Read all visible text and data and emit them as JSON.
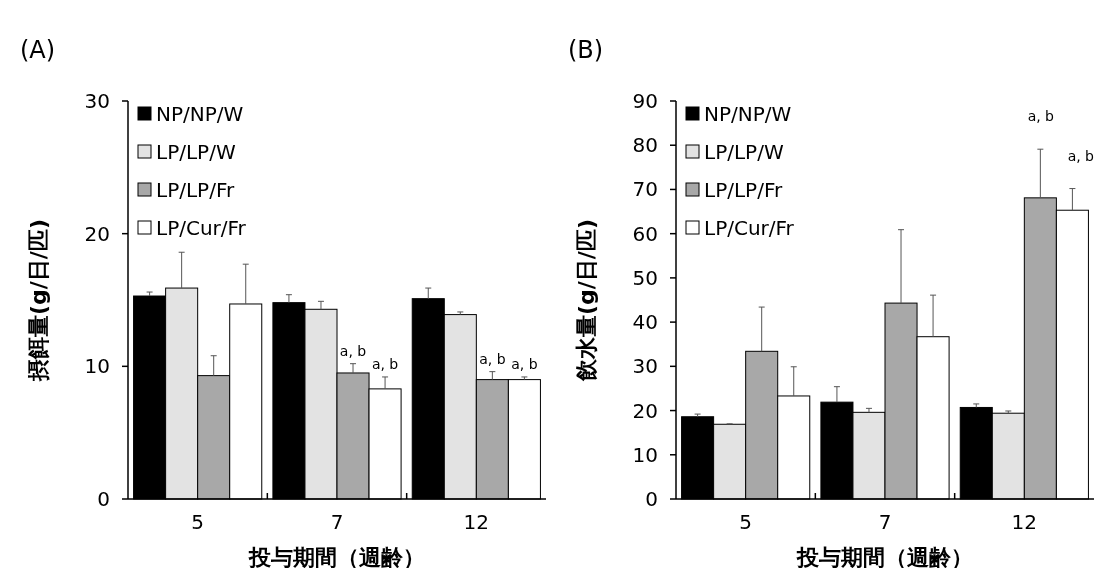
{
  "chart_data": [
    {
      "type": "bar",
      "title": "(A)",
      "xlabel": "投与期間（週齢）",
      "ylabel": "摂餌量(g/日/匹)",
      "categories": [
        "5",
        "7",
        "12"
      ],
      "ylim": [
        0,
        30
      ],
      "yticks": [
        0,
        10,
        20,
        30
      ],
      "grid": false,
      "legend": "top left",
      "series": [
        {
          "name": "NP/NP/W",
          "color": "#000000",
          "values": [
            15.3,
            14.8,
            15.1
          ],
          "errors": [
            [
              15.3,
              15.6
            ],
            [
              14.8,
              15.4
            ],
            [
              15.1,
              15.9
            ]
          ]
        },
        {
          "name": "LP/LP/W",
          "color": "#e3e3e3",
          "values": [
            15.9,
            14.3,
            13.9
          ],
          "errors": [
            [
              15.9,
              18.6
            ],
            [
              14.3,
              14.9
            ],
            [
              13.9,
              14.1
            ]
          ]
        },
        {
          "name": "LP/LP/Fr",
          "color": "#a8a8a8",
          "values": [
            9.3,
            9.5,
            9.0
          ],
          "errors": [
            [
              9.3,
              10.8
            ],
            [
              9.5,
              10.2
            ],
            [
              9.0,
              9.6
            ]
          ]
        },
        {
          "name": "LP/Cur/Fr",
          "color": "#ffffff",
          "values": [
            14.7,
            8.3,
            9.0
          ],
          "errors": [
            [
              14.7,
              17.7
            ],
            [
              8.3,
              9.2
            ],
            [
              9.0,
              9.2
            ]
          ]
        }
      ],
      "annotations": [
        {
          "text": "a, b",
          "x": "7",
          "y": 10.2
        },
        {
          "text": "a, b",
          "x": "7",
          "y": 9.2
        },
        {
          "text": "a, b",
          "x": "12",
          "y": 9.6
        },
        {
          "text": "a, b",
          "x": "12",
          "y": 9.2
        }
      ]
    },
    {
      "type": "bar",
      "title": "(B)",
      "xlabel": "投与期間（週齢）",
      "ylabel": "飲水量(g/日/匹)",
      "categories": [
        "5",
        "7",
        "12"
      ],
      "ylim": [
        0,
        90
      ],
      "yticks": [
        0,
        10,
        20,
        30,
        40,
        50,
        60,
        70,
        80,
        90
      ],
      "grid": false,
      "legend": "top left",
      "series": [
        {
          "name": "NP/NP/W",
          "color": "#000000",
          "values": [
            18.6,
            21.9,
            20.7
          ],
          "errors": [
            [
              18.6,
              19.2
            ],
            [
              21.9,
              25.4
            ],
            [
              20.7,
              21.5
            ]
          ]
        },
        {
          "name": "LP/LP/W",
          "color": "#e3e3e3",
          "values": [
            16.9,
            19.6,
            19.4
          ],
          "errors": [
            [
              16.9,
              17.0
            ],
            [
              19.6,
              20.5
            ],
            [
              19.4,
              19.9
            ]
          ]
        },
        {
          "name": "LP/LP/Fr",
          "color": "#a8a8a8",
          "values": [
            33.4,
            44.3,
            68.1
          ],
          "errors": [
            [
              33.4,
              43.4
            ],
            [
              44.3,
              60.9
            ],
            [
              68.1,
              79.1
            ]
          ]
        },
        {
          "name": "LP/Cur/Fr",
          "color": "#ffffff",
          "values": [
            23.3,
            36.7,
            65.3
          ],
          "errors": [
            [
              23.3,
              29.9
            ],
            [
              36.7,
              46.1
            ],
            [
              65.3,
              70.2
            ]
          ]
        }
      ],
      "annotations": [
        "a, b",
        "a, b"
      ]
    }
  ]
}
